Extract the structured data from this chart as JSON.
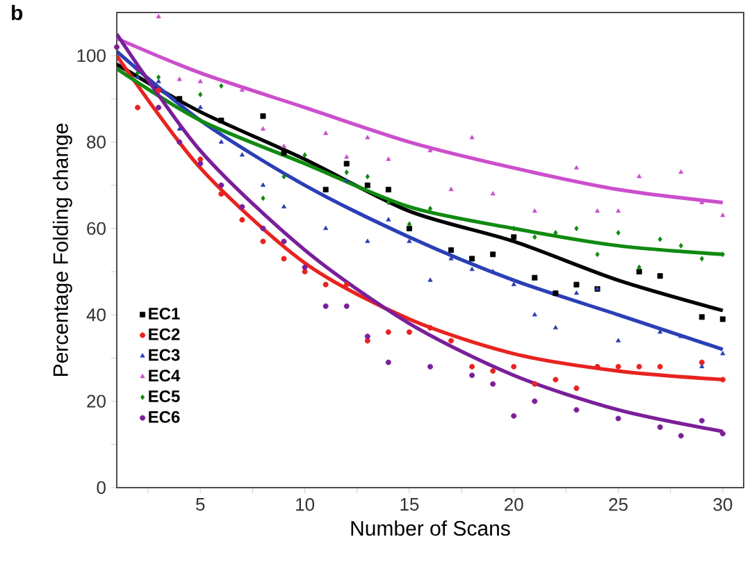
{
  "chart_data": {
    "type": "scatter",
    "xlabel": "Number of Scans",
    "ylabel": "Percentage Folding change",
    "annotations": [
      "b"
    ],
    "xlim": [
      1,
      31
    ],
    "ylim": [
      0,
      110
    ],
    "xticks": [
      {
        "value": 2.5,
        "label": null
      },
      5,
      {
        "value": 7.5,
        "label": null
      },
      10,
      {
        "value": 12.5,
        "label": null
      },
      15,
      {
        "value": 17.5,
        "label": null
      },
      20,
      {
        "value": 22.5,
        "label": null
      },
      25,
      {
        "value": 27.5,
        "label": null
      },
      30
    ],
    "yticks": [
      0,
      {
        "value": 10,
        "label": null
      },
      20,
      {
        "value": 30,
        "label": null
      },
      40,
      {
        "value": 50,
        "label": null
      },
      60,
      {
        "value": 70,
        "label": null
      },
      80,
      {
        "value": 90,
        "label": null
      },
      100
    ],
    "grid": false,
    "legend": "left",
    "series": [
      {
        "name": "EC1",
        "color": "#000000",
        "marker": "square",
        "x": [
          4,
          6,
          8,
          9,
          11,
          12,
          13,
          14,
          15,
          17,
          18,
          19,
          20,
          21,
          22,
          23,
          24,
          26,
          27,
          29,
          30
        ],
        "values": [
          90,
          85,
          86,
          77.5,
          69,
          75,
          70,
          69,
          60,
          55,
          53,
          54,
          58,
          48.6,
          45,
          47,
          46,
          50,
          49,
          39.5,
          39
        ]
      },
      {
        "name": "EC2",
        "color": "#e8231f",
        "marker": "circle",
        "x": [
          2,
          3,
          5,
          6,
          7,
          8,
          9,
          10,
          11,
          12,
          13,
          14,
          15,
          16,
          17,
          18,
          19,
          20,
          21,
          22,
          23,
          24,
          25,
          26,
          27,
          29,
          30
        ],
        "values": [
          88,
          92,
          76,
          68,
          62,
          57,
          53,
          50,
          47,
          47,
          34,
          36,
          36,
          37,
          34,
          28,
          27,
          28,
          24,
          25,
          23,
          28,
          28,
          28,
          28,
          29,
          25
        ]
      },
      {
        "name": "EC3",
        "color": "#2b3fb5",
        "marker": "triangle",
        "x": [
          2,
          3,
          4,
          5,
          6,
          7,
          8,
          9,
          11,
          12,
          13,
          14,
          15,
          16,
          17,
          18,
          19,
          20,
          21,
          22,
          23,
          24,
          25,
          27,
          28,
          29,
          30
        ],
        "values": [
          95,
          94,
          83,
          88,
          80,
          77,
          70,
          65,
          60,
          71,
          57,
          62,
          57,
          48,
          53,
          50.5,
          50,
          47,
          40,
          37,
          45,
          46,
          34,
          36,
          35,
          28,
          31
        ]
      },
      {
        "name": "EC4",
        "color": "#cc4fcc",
        "marker": "triangle",
        "x": [
          3,
          4,
          5,
          7,
          8,
          9,
          11,
          12,
          13,
          14,
          16,
          17,
          18,
          19,
          21,
          23,
          24,
          25,
          26,
          28,
          29,
          30
        ],
        "values": [
          109,
          94.5,
          94,
          92,
          83,
          79,
          82,
          76.5,
          81,
          76,
          78,
          69,
          81,
          68,
          64,
          74,
          64,
          64,
          72,
          73,
          66,
          63
        ]
      },
      {
        "name": "EC5",
        "color": "#108a10",
        "marker": "diamond",
        "x": [
          2,
          3,
          5,
          6,
          8,
          9,
          10,
          12,
          13,
          14,
          15,
          16,
          20,
          21,
          22,
          23,
          24,
          25,
          26,
          27,
          28,
          29,
          30
        ],
        "values": [
          96,
          95,
          91,
          93,
          67,
          72,
          77,
          73,
          72,
          66,
          61,
          64.6,
          60,
          58,
          59,
          60,
          54,
          59,
          51,
          57.5,
          56,
          53,
          54
        ]
      },
      {
        "name": "EC6",
        "color": "#7a1f9a",
        "marker": "circle",
        "x": [
          1,
          2,
          3,
          4,
          5,
          6,
          7,
          8,
          9,
          10,
          11,
          12,
          13,
          14,
          16,
          18,
          19,
          20,
          21,
          23,
          25,
          27,
          28,
          29,
          30
        ],
        "values": [
          102,
          97,
          88,
          80,
          75,
          70,
          65,
          60,
          57,
          51,
          42,
          42,
          35,
          29,
          28,
          26,
          24,
          16.6,
          20,
          18,
          16,
          14,
          12,
          15.5,
          12.5
        ]
      },
      {
        "type": "line",
        "color": "#000000",
        "marker": "none",
        "x": [
          1,
          5,
          10,
          15,
          20,
          25,
          30
        ],
        "values": [
          98,
          87,
          76,
          64,
          57,
          48,
          41
        ]
      },
      {
        "type": "line",
        "color": "#e8231f",
        "marker": "none",
        "x": [
          1,
          5,
          10,
          15,
          20,
          25,
          30
        ],
        "values": [
          100,
          74,
          52,
          39,
          31,
          27,
          25
        ]
      },
      {
        "type": "line",
        "color": "#2b3fb5",
        "marker": "none",
        "x": [
          1,
          5,
          10,
          15,
          20,
          25,
          30
        ],
        "values": [
          101,
          85,
          70,
          58,
          48,
          40,
          32
        ]
      },
      {
        "type": "line",
        "color": "#cc4fcc",
        "marker": "none",
        "x": [
          1,
          5,
          10,
          15,
          20,
          25,
          30
        ],
        "values": [
          104,
          96,
          88,
          80,
          74,
          69,
          66
        ]
      },
      {
        "type": "line",
        "color": "#108a10",
        "marker": "none",
        "x": [
          1,
          5,
          10,
          15,
          20,
          25,
          30
        ],
        "values": [
          97,
          85,
          75,
          65,
          60,
          56,
          54
        ]
      },
      {
        "type": "line",
        "color": "#7a1f9a",
        "marker": "none",
        "x": [
          1,
          5,
          10,
          15,
          20,
          25,
          30
        ],
        "values": [
          105,
          78,
          55,
          38,
          26,
          18,
          13
        ]
      }
    ]
  }
}
